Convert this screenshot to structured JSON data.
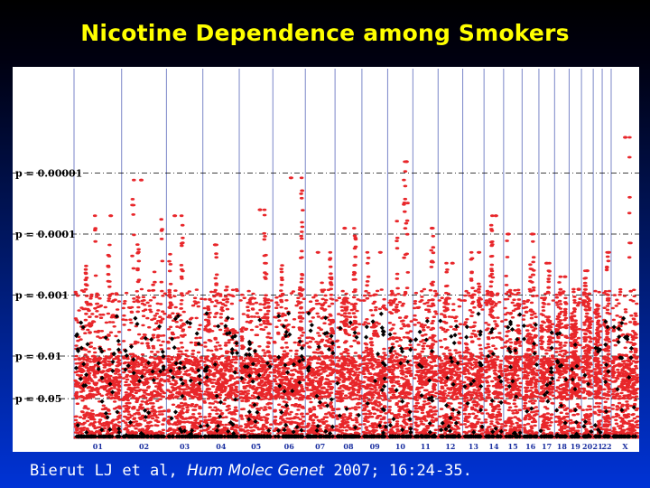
{
  "title": "Nicotine Dependence among Smokers",
  "citation": {
    "authors": "Bierut LJ et al,",
    "journal": "Hum Molec Genet",
    "details": "2007; 16:24-35."
  },
  "colors": {
    "title": "#ffff00",
    "points": "#e8262a",
    "highlight_points": "#000000",
    "chromosome_lines": "#7a86c8",
    "threshold_lines": "#000000"
  },
  "chart_data": {
    "type": "scatter",
    "title": "",
    "xlabel": "",
    "ylabel": "",
    "y_scale": "log_p_value",
    "ylim": [
      1,
      4e-06
    ],
    "thresholds": [
      {
        "label": "p = 0.00001",
        "value": 1e-05
      },
      {
        "label": "p = 0.0001",
        "value": 0.0001
      },
      {
        "label": "p = 0.001",
        "value": 0.001
      },
      {
        "label": "p = 0.01",
        "value": 0.01
      },
      {
        "label": "p = 0.05",
        "value": 0.05
      }
    ],
    "chromosomes": [
      {
        "label": "01",
        "width": 8.5,
        "peak_p": 5e-05
      },
      {
        "label": "02",
        "width": 8.0,
        "peak_p": 1.3e-05
      },
      {
        "label": "03",
        "width": 6.5,
        "peak_p": 5e-05
      },
      {
        "label": "04",
        "width": 6.5,
        "peak_p": 0.00015
      },
      {
        "label": "05",
        "width": 6.0,
        "peak_p": 4e-05
      },
      {
        "label": "06",
        "width": 5.8,
        "peak_p": 1.2e-05
      },
      {
        "label": "07",
        "width": 5.3,
        "peak_p": 0.0002
      },
      {
        "label": "08",
        "width": 4.8,
        "peak_p": 8e-05
      },
      {
        "label": "09",
        "width": 4.6,
        "peak_p": 0.0002
      },
      {
        "label": "10",
        "width": 4.5,
        "peak_p": 6.5e-06
      },
      {
        "label": "11",
        "width": 4.5,
        "peak_p": 8e-05
      },
      {
        "label": "12",
        "width": 4.4,
        "peak_p": 0.0003
      },
      {
        "label": "13",
        "width": 3.8,
        "peak_p": 0.0002
      },
      {
        "label": "14",
        "width": 3.5,
        "peak_p": 5e-05
      },
      {
        "label": "15",
        "width": 3.3,
        "peak_p": 0.0001
      },
      {
        "label": "16",
        "width": 3.0,
        "peak_p": 0.0001
      },
      {
        "label": "17",
        "width": 2.8,
        "peak_p": 0.0003
      },
      {
        "label": "18",
        "width": 2.6,
        "peak_p": 0.0005
      },
      {
        "label": "19",
        "width": 2.2,
        "peak_p": 0.0008
      },
      {
        "label": "20",
        "width": 2.1,
        "peak_p": 0.0004
      },
      {
        "label": "21",
        "width": 1.6,
        "peak_p": 0.0015
      },
      {
        "label": "22",
        "width": 1.6,
        "peak_p": 0.0002
      },
      {
        "label": "X",
        "width": 5.0,
        "peak_p": 2.6e-06
      }
    ]
  }
}
